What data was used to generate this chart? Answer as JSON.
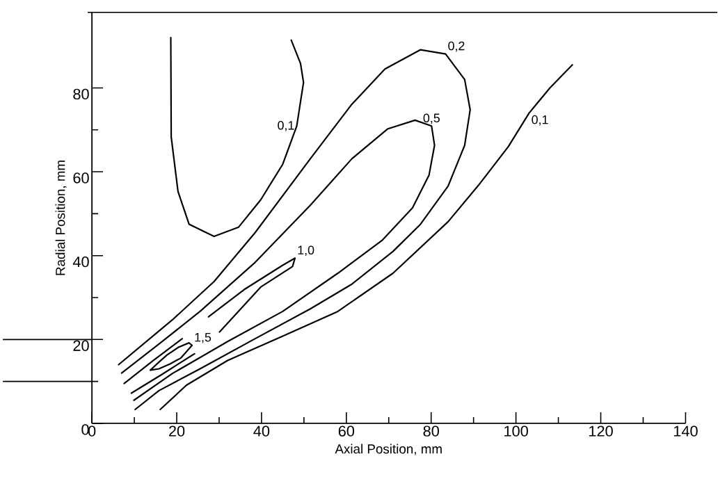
{
  "chart_data": {
    "type": "line",
    "xlabel": "Axial Position, mm",
    "ylabel": "Radial Position, mm",
    "xlim": [
      0,
      140
    ],
    "ylim": [
      0,
      98
    ],
    "xticks": [
      0,
      20,
      40,
      60,
      80,
      100,
      120,
      140
    ],
    "yticks": [
      0,
      20,
      40,
      60,
      80
    ],
    "grid": false,
    "marker": "none",
    "line_style": "solid",
    "series": [
      {
        "name": "0,1",
        "color": "#000000",
        "x": [
          18.6,
          18.7,
          20.3,
          22.9,
          28.8,
          34.6,
          39.8,
          45.0,
          48.3,
          49.9,
          49.2,
          47.0
        ],
        "values": [
          92.0,
          68.3,
          55.3,
          47.5,
          44.6,
          46.8,
          53.3,
          61.8,
          70.9,
          81.3,
          85.8,
          91.4
        ]
      },
      {
        "name": "0,2",
        "color": "#000000",
        "x": [
          6.3,
          19.0,
          28.8,
          38.5,
          51.5,
          61.3,
          69.1,
          77.5,
          83.4,
          87.9,
          89.2,
          87.9,
          84.0,
          77.5,
          71.0,
          61.3,
          51.5,
          38.5,
          25.5,
          15.8,
          10.2
        ],
        "values": [
          14.0,
          24.7,
          33.8,
          45.5,
          63.1,
          76.1,
          84.5,
          89.1,
          88.1,
          82.0,
          74.8,
          66.3,
          56.6,
          47.5,
          41.0,
          33.2,
          27.3,
          20.2,
          13.0,
          7.8,
          3.3
        ]
      },
      {
        "name": "0,5",
        "color": "#000000",
        "x": [
          7.0,
          15.8,
          25.5,
          38.5,
          51.5,
          61.3,
          69.7,
          76.2,
          80.1,
          80.8,
          79.5,
          75.6,
          68.4,
          58.0,
          45.0,
          32.0,
          19.0,
          9.9
        ],
        "values": [
          12.0,
          18.9,
          26.7,
          38.4,
          52.0,
          63.1,
          70.2,
          72.3,
          70.9,
          66.3,
          59.2,
          51.4,
          43.6,
          35.8,
          26.7,
          19.5,
          11.9,
          5.5
        ]
      },
      {
        "name": "1,0",
        "color": "#000000",
        "x": [
          7.6,
          14.5,
          21.3,
          24.4,
          27.5,
          35.9,
          45.0,
          47.9,
          47.3,
          39.8,
          30.1,
          27.2,
          24.2,
          16.4,
          9.3
        ],
        "values": [
          9.5,
          15.0,
          20.2,
          null,
          25.4,
          31.9,
          37.7,
          39.4,
          37.4,
          32.5,
          21.8,
          null,
          16.6,
          11.6,
          7.2
        ]
      },
      {
        "name": "1,5",
        "color": "#000000",
        "x": [
          13.8,
          15.8,
          17.7,
          20.5,
          22.9,
          23.6
        ],
        "values": [
          12.7,
          14.6,
          16.3,
          18.2,
          19.2,
          18.6
        ]
      },
      {
        "color": "#000000",
        "x": [
          13.8,
          15.8,
          18.5,
          21.0,
          23.6
        ],
        "values": [
          12.7,
          13.0,
          14.2,
          15.6,
          18.6
        ]
      },
      {
        "name": "0,1",
        "color": "#000000",
        "x": [
          16.1,
          22.3,
          32.0,
          45.0,
          58.0,
          71.0,
          84.0,
          91.5,
          98.2,
          103.1,
          108.0,
          113.3
        ],
        "values": [
          3.3,
          9.1,
          15.0,
          20.8,
          26.7,
          35.8,
          48.1,
          57.2,
          66.0,
          74.0,
          80.0,
          85.5
        ]
      }
    ]
  }
}
